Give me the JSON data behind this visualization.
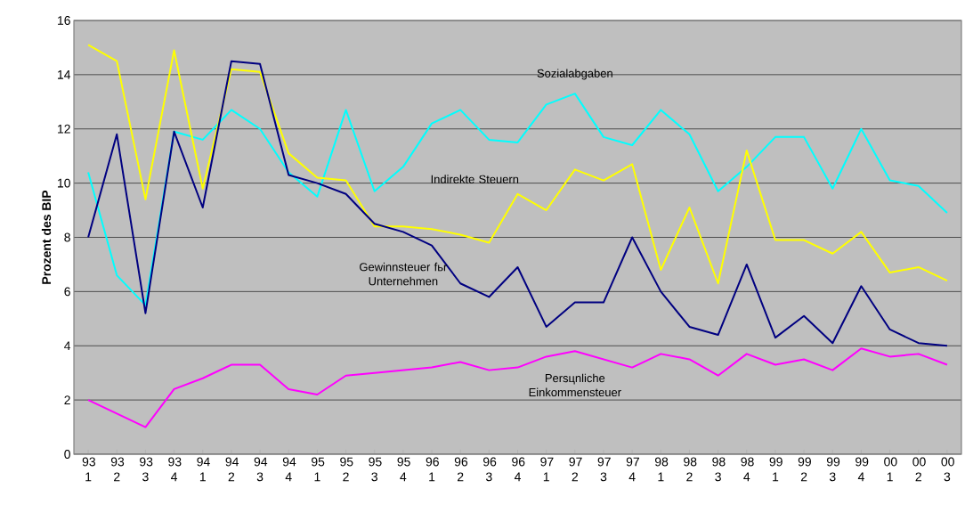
{
  "chart_data": {
    "type": "line",
    "ylabel": "Prozent des BIP",
    "categories": [
      "93 1",
      "93 2",
      "93 3",
      "93 4",
      "94 1",
      "94 2",
      "94 3",
      "94 4",
      "95 1",
      "95 2",
      "95 3",
      "95 4",
      "96 1",
      "96 2",
      "96 3",
      "96 4",
      "97 1",
      "97 2",
      "97 3",
      "97 4",
      "98 1",
      "98 2",
      "98 3",
      "98 4",
      "99 1",
      "99 2",
      "99 3",
      "99 4",
      "00 1",
      "00 2",
      "00 3"
    ],
    "series": [
      {
        "name": "Sozialabgaben",
        "color": "#00ffff",
        "values": [
          10.4,
          6.6,
          5.5,
          11.9,
          11.6,
          12.7,
          12.0,
          10.4,
          9.5,
          12.7,
          9.7,
          10.6,
          12.2,
          12.7,
          11.6,
          11.5,
          12.9,
          13.3,
          11.7,
          11.4,
          12.7,
          11.8,
          9.7,
          10.6,
          11.7,
          11.7,
          9.8,
          12.0,
          10.1,
          9.9,
          8.9
        ]
      },
      {
        "name": "Indirekte Steuern",
        "color": "#ffff00",
        "values": [
          15.1,
          14.5,
          9.4,
          14.9,
          9.8,
          14.2,
          14.1,
          11.1,
          10.2,
          10.1,
          8.4,
          8.4,
          8.3,
          8.1,
          7.8,
          9.6,
          9.0,
          10.5,
          10.1,
          10.7,
          6.8,
          9.1,
          6.3,
          11.2,
          7.9,
          7.9,
          7.4,
          8.2,
          6.7,
          6.9,
          6.4
        ]
      },
      {
        "name": "Gewinnsteuer fьr Unternehmen",
        "color": "#000080",
        "values": [
          8.0,
          11.8,
          5.2,
          11.9,
          9.1,
          14.5,
          14.4,
          10.3,
          10.0,
          9.6,
          8.5,
          8.2,
          7.7,
          6.3,
          5.8,
          6.9,
          4.7,
          5.6,
          5.6,
          8.0,
          6.0,
          4.7,
          4.4,
          7.0,
          4.3,
          5.1,
          4.1,
          6.2,
          4.6,
          4.1,
          4.0
        ]
      },
      {
        "name": "Persцnliche Einkommensteuer",
        "color": "#ff00ff",
        "values": [
          2.0,
          1.5,
          1.0,
          2.4,
          2.8,
          3.3,
          3.3,
          2.4,
          2.2,
          2.9,
          3.0,
          3.1,
          3.2,
          3.4,
          3.1,
          3.2,
          3.6,
          3.8,
          3.5,
          3.2,
          3.7,
          3.5,
          2.9,
          3.7,
          3.3,
          3.5,
          3.1,
          3.9,
          3.6,
          3.7,
          3.3
        ]
      }
    ],
    "ylim": [
      0,
      16
    ],
    "yticks": [
      0,
      2,
      4,
      6,
      8,
      10,
      12,
      14,
      16
    ],
    "grid": "y",
    "marker": "none",
    "line_style": "solid"
  }
}
